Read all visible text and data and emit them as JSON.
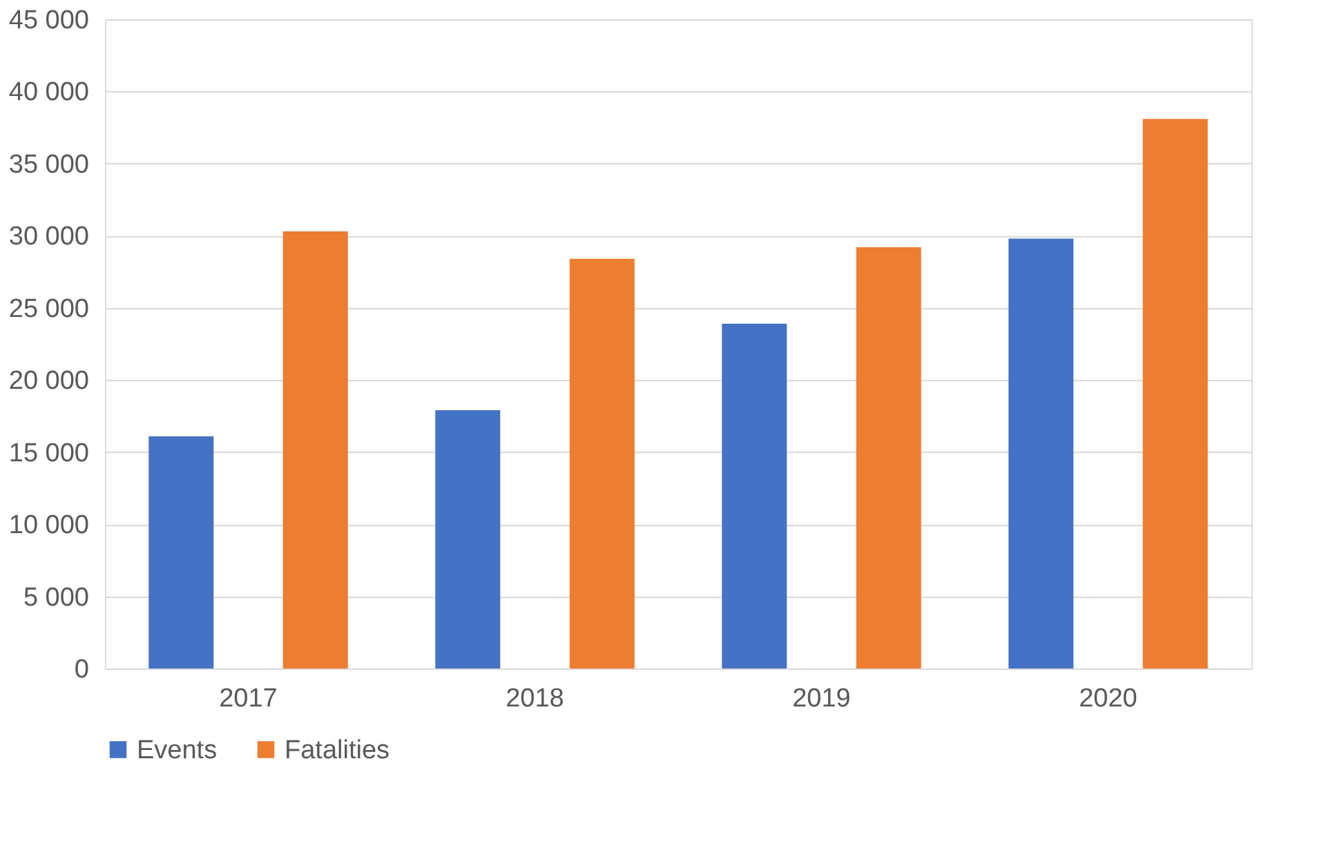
{
  "chart_data": {
    "type": "bar",
    "categories": [
      "2017",
      "2018",
      "2019",
      "2020"
    ],
    "series": [
      {
        "name": "Events",
        "color": "#4472c4",
        "values": [
          16100,
          17900,
          23900,
          29800
        ]
      },
      {
        "name": "Fatalities",
        "color": "#ed7d31",
        "values": [
          30300,
          28400,
          29200,
          38100
        ]
      }
    ],
    "ylim": [
      0,
      45000
    ],
    "yticks": [
      {
        "value": 0,
        "label": "0"
      },
      {
        "value": 5000,
        "label": "5 000"
      },
      {
        "value": 10000,
        "label": "10 000"
      },
      {
        "value": 15000,
        "label": "15 000"
      },
      {
        "value": 20000,
        "label": "20 000"
      },
      {
        "value": 25000,
        "label": "25 000"
      },
      {
        "value": 30000,
        "label": "30 000"
      },
      {
        "value": 35000,
        "label": "35 000"
      },
      {
        "value": 40000,
        "label": "40 000"
      },
      {
        "value": 45000,
        "label": "45 000"
      }
    ],
    "grid": "y",
    "legend": "bottom"
  }
}
